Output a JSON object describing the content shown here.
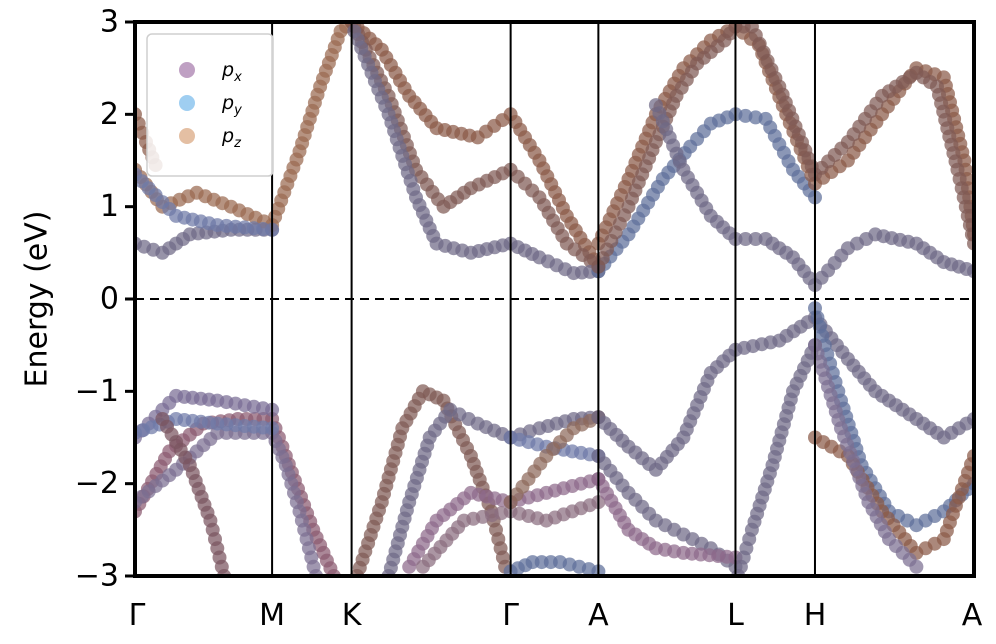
{
  "chart_data": {
    "type": "scatter",
    "ylabel": "Energy (eV)",
    "ylim": [
      -3,
      3
    ],
    "y_ticks": [
      "3",
      "2",
      "1",
      "0",
      "−1",
      "−2",
      "−3"
    ],
    "y_tick_values": [
      3,
      2,
      1,
      0,
      -1,
      -2,
      -3
    ],
    "k_path": [
      {
        "label": "Γ",
        "x": 0.0
      },
      {
        "label": "M",
        "x": 1.0
      },
      {
        "label": "K",
        "x": 1.58
      },
      {
        "label": "Γ",
        "x": 2.74
      },
      {
        "label": "A",
        "x": 3.38
      },
      {
        "label": "L",
        "x": 4.38
      },
      {
        "label": "H",
        "x": 4.96
      },
      {
        "label": "A",
        "x": 6.12
      }
    ],
    "xlim": [
      0,
      6.12
    ],
    "fermi_level": 0,
    "grid": false,
    "legend_position": "top-left",
    "series": [
      {
        "name": "p_x",
        "label_base": "p",
        "label_sub": "x",
        "color": "#b48fb8"
      },
      {
        "name": "p_y",
        "label_base": "p",
        "label_sub": "y",
        "color": "#8ec6ef"
      },
      {
        "name": "p_z",
        "label_base": "p",
        "label_sub": "z",
        "color": "#dfb493"
      }
    ],
    "bands": [
      {
        "color": "#8a5a70",
        "points": [
          [
            0,
            -2.3
          ],
          [
            0.25,
            -1.65
          ],
          [
            0.5,
            -1.35
          ],
          [
            0.75,
            -1.3
          ],
          [
            1.0,
            -1.3
          ],
          [
            1.1,
            -1.7
          ],
          [
            1.3,
            -2.5
          ],
          [
            1.45,
            -3.0
          ]
        ]
      },
      {
        "color": "#7c6f92",
        "points": [
          [
            0,
            -2.2
          ],
          [
            0.3,
            -1.85
          ],
          [
            0.6,
            -1.45
          ],
          [
            1.0,
            -1.45
          ],
          [
            1.1,
            -1.8
          ],
          [
            1.2,
            -2.3
          ],
          [
            1.32,
            -3.0
          ]
        ]
      },
      {
        "color": "#786c94",
        "points": [
          [
            0,
            -1.5
          ],
          [
            0.3,
            -1.05
          ],
          [
            0.6,
            -1.1
          ],
          [
            1.0,
            -1.2
          ]
        ]
      },
      {
        "color": "#6f7aa8",
        "points": [
          [
            0,
            -1.45
          ],
          [
            0.3,
            -1.3
          ],
          [
            0.6,
            -1.35
          ],
          [
            1.0,
            -1.4
          ]
        ]
      },
      {
        "color": "#7a5560",
        "points": [
          [
            0.2,
            -1.3
          ],
          [
            0.4,
            -1.8
          ],
          [
            0.55,
            -2.4
          ],
          [
            0.65,
            -3.0
          ]
        ]
      },
      {
        "color": "#6f6a86",
        "points": [
          [
            0,
            0.6
          ],
          [
            0.2,
            0.5
          ],
          [
            0.4,
            0.7
          ],
          [
            0.7,
            0.75
          ],
          [
            1.0,
            0.75
          ]
        ]
      },
      {
        "color": "#9a6a50",
        "points": [
          [
            0,
            1.4
          ],
          [
            0.2,
            1.0
          ],
          [
            0.45,
            1.15
          ],
          [
            0.7,
            1.0
          ],
          [
            1.0,
            0.8
          ],
          [
            1.2,
            1.6
          ],
          [
            1.35,
            2.3
          ],
          [
            1.5,
            2.9
          ],
          [
            1.58,
            3.0
          ]
        ]
      },
      {
        "color": "#6e79a6",
        "points": [
          [
            0,
            1.35
          ],
          [
            0.3,
            0.9
          ],
          [
            0.6,
            0.8
          ],
          [
            1.0,
            0.75
          ]
        ]
      },
      {
        "color": "#8a5a48",
        "points": [
          [
            0,
            2.0
          ],
          [
            0.08,
            1.7
          ],
          [
            0.15,
            1.45
          ]
        ]
      },
      {
        "color": "#8a5a48",
        "points": [
          [
            1.58,
            3.0
          ],
          [
            1.8,
            2.7
          ],
          [
            2.0,
            2.2
          ],
          [
            2.2,
            1.85
          ],
          [
            2.5,
            1.75
          ],
          [
            2.74,
            2.0
          ],
          [
            2.95,
            1.5
          ],
          [
            3.15,
            0.9
          ],
          [
            3.38,
            0.35
          ]
        ]
      },
      {
        "color": "#7f5a55",
        "points": [
          [
            1.6,
            2.95
          ],
          [
            1.85,
            2.2
          ],
          [
            2.05,
            1.4
          ],
          [
            2.25,
            1.0
          ],
          [
            2.45,
            1.2
          ],
          [
            2.74,
            1.4
          ],
          [
            2.95,
            1.1
          ],
          [
            3.15,
            0.6
          ],
          [
            3.38,
            0.35
          ]
        ]
      },
      {
        "color": "#6f6a86",
        "points": [
          [
            1.6,
            2.9
          ],
          [
            1.85,
            2.0
          ],
          [
            2.05,
            1.1
          ],
          [
            2.2,
            0.6
          ],
          [
            2.45,
            0.5
          ],
          [
            2.74,
            0.6
          ],
          [
            2.95,
            0.45
          ],
          [
            3.2,
            0.28
          ],
          [
            3.38,
            0.3
          ]
        ]
      },
      {
        "color": "#7f5a55",
        "points": [
          [
            1.62,
            -3.0
          ],
          [
            1.8,
            -2.2
          ],
          [
            1.95,
            -1.4
          ],
          [
            2.1,
            -1.0
          ],
          [
            2.25,
            -1.1
          ],
          [
            2.45,
            -1.7
          ],
          [
            2.6,
            -2.3
          ],
          [
            2.7,
            -2.9
          ]
        ]
      },
      {
        "color": "#6f6a86",
        "points": [
          [
            1.85,
            -3.0
          ],
          [
            2.0,
            -2.2
          ],
          [
            2.15,
            -1.5
          ],
          [
            2.3,
            -1.2
          ],
          [
            2.5,
            -1.35
          ],
          [
            2.74,
            -1.5
          ],
          [
            2.95,
            -1.4
          ],
          [
            3.2,
            -1.3
          ],
          [
            3.38,
            -1.28
          ]
        ]
      },
      {
        "color": "#8e6a8a",
        "points": [
          [
            2.0,
            -2.9
          ],
          [
            2.2,
            -2.4
          ],
          [
            2.45,
            -2.1
          ],
          [
            2.74,
            -2.2
          ],
          [
            3.0,
            -2.1
          ],
          [
            3.38,
            -1.95
          ]
        ]
      },
      {
        "color": "#8a6e80",
        "points": [
          [
            2.1,
            -2.9
          ],
          [
            2.4,
            -2.4
          ],
          [
            2.74,
            -2.3
          ],
          [
            3.0,
            -2.4
          ],
          [
            3.38,
            -2.2
          ]
        ]
      },
      {
        "color": "#6f7aa8",
        "points": [
          [
            2.74,
            -1.5
          ],
          [
            3.0,
            -1.6
          ],
          [
            3.38,
            -1.7
          ]
        ]
      },
      {
        "color": "#8d6a5c",
        "points": [
          [
            2.74,
            -2.2
          ],
          [
            3.0,
            -1.7
          ],
          [
            3.2,
            -1.4
          ],
          [
            3.38,
            -1.28
          ]
        ]
      },
      {
        "color": "#5e6f9a",
        "points": [
          [
            2.74,
            -2.95
          ],
          [
            2.9,
            -2.85
          ],
          [
            3.1,
            -2.85
          ],
          [
            3.38,
            -2.95
          ]
        ]
      },
      {
        "color": "#6f6a86",
        "points": [
          [
            3.38,
            -1.28
          ],
          [
            3.6,
            -1.6
          ],
          [
            3.8,
            -1.85
          ],
          [
            4.0,
            -1.5
          ],
          [
            4.2,
            -0.8
          ],
          [
            4.38,
            -0.55
          ],
          [
            4.7,
            -0.45
          ],
          [
            4.96,
            -0.2
          ],
          [
            5.2,
            -0.65
          ],
          [
            5.4,
            -1.0
          ],
          [
            5.7,
            -1.3
          ],
          [
            5.9,
            -1.5
          ],
          [
            6.12,
            -1.3
          ]
        ]
      },
      {
        "color": "#6f6a86",
        "points": [
          [
            3.38,
            -1.7
          ],
          [
            3.6,
            -2.1
          ],
          [
            3.8,
            -2.4
          ],
          [
            4.0,
            -2.55
          ],
          [
            4.2,
            -2.7
          ],
          [
            4.38,
            -2.9
          ]
        ]
      },
      {
        "color": "#8e6a8a",
        "points": [
          [
            3.38,
            -1.95
          ],
          [
            3.6,
            -2.5
          ],
          [
            3.8,
            -2.7
          ],
          [
            4.0,
            -2.75
          ],
          [
            4.38,
            -2.8
          ]
        ]
      },
      {
        "color": "#5e6f9a",
        "points": [
          [
            3.38,
            0.3
          ],
          [
            3.6,
            0.7
          ],
          [
            3.85,
            1.3
          ],
          [
            4.05,
            1.65
          ],
          [
            4.2,
            1.9
          ],
          [
            4.38,
            2.0
          ],
          [
            4.6,
            1.95
          ],
          [
            4.8,
            1.4
          ],
          [
            4.96,
            1.1
          ]
        ]
      },
      {
        "color": "#8a5a48",
        "points": [
          [
            3.38,
            0.6
          ],
          [
            3.6,
            1.3
          ],
          [
            3.8,
            2.0
          ],
          [
            4.0,
            2.5
          ],
          [
            4.2,
            2.8
          ],
          [
            4.38,
            2.95
          ],
          [
            4.55,
            2.75
          ],
          [
            4.75,
            2.0
          ],
          [
            4.96,
            1.25
          ],
          [
            5.2,
            1.5
          ],
          [
            5.45,
            2.0
          ],
          [
            5.7,
            2.5
          ],
          [
            5.9,
            2.4
          ],
          [
            6.05,
            1.5
          ],
          [
            6.12,
            0.7
          ]
        ]
      },
      {
        "color": "#7f5a55",
        "points": [
          [
            3.38,
            0.35
          ],
          [
            3.6,
            1.0
          ],
          [
            3.8,
            1.7
          ],
          [
            3.95,
            2.2
          ],
          [
            4.1,
            2.55
          ],
          [
            4.3,
            2.8
          ],
          [
            4.38,
            2.95
          ],
          [
            4.5,
            2.95
          ],
          [
            4.7,
            2.3
          ],
          [
            4.96,
            1.35
          ],
          [
            5.2,
            1.7
          ],
          [
            5.45,
            2.2
          ],
          [
            5.7,
            2.45
          ],
          [
            5.85,
            2.3
          ],
          [
            6.0,
            1.4
          ],
          [
            6.12,
            0.6
          ]
        ]
      },
      {
        "color": "#6f6a86",
        "points": [
          [
            3.8,
            2.1
          ],
          [
            4.0,
            1.4
          ],
          [
            4.2,
            0.9
          ],
          [
            4.38,
            0.65
          ],
          [
            4.6,
            0.65
          ],
          [
            4.8,
            0.45
          ],
          [
            4.96,
            0.15
          ],
          [
            5.2,
            0.55
          ],
          [
            5.4,
            0.7
          ],
          [
            5.7,
            0.6
          ],
          [
            5.9,
            0.4
          ],
          [
            6.12,
            0.3
          ]
        ]
      },
      {
        "color": "#5e6f9a",
        "points": [
          [
            4.96,
            -0.1
          ],
          [
            5.05,
            -0.6
          ],
          [
            5.15,
            -1.1
          ],
          [
            5.3,
            -1.8
          ],
          [
            5.5,
            -2.3
          ],
          [
            5.7,
            -2.45
          ],
          [
            5.9,
            -2.3
          ],
          [
            6.12,
            -2.0
          ]
        ]
      },
      {
        "color": "#8a5a48",
        "points": [
          [
            4.96,
            -1.5
          ],
          [
            5.2,
            -1.7
          ],
          [
            5.45,
            -2.3
          ],
          [
            5.7,
            -2.75
          ],
          [
            5.9,
            -2.6
          ],
          [
            6.12,
            -1.7
          ]
        ]
      },
      {
        "color": "#6f6a86",
        "points": [
          [
            4.96,
            -0.5
          ],
          [
            4.8,
            -1.0
          ],
          [
            4.65,
            -1.8
          ],
          [
            4.5,
            -2.5
          ],
          [
            4.4,
            -3.0
          ]
        ]
      },
      {
        "color": "#7c6f92",
        "points": [
          [
            4.96,
            -0.5
          ],
          [
            5.15,
            -1.4
          ],
          [
            5.35,
            -2.2
          ],
          [
            5.5,
            -2.6
          ],
          [
            5.7,
            -2.9
          ]
        ]
      }
    ]
  }
}
